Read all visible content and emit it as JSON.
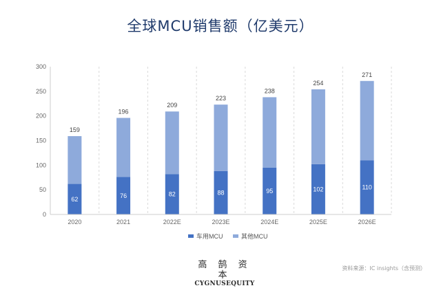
{
  "title": "全球MCU销售额（亿美元）",
  "chart_data": {
    "type": "bar",
    "stacked": true,
    "categories": [
      "2020",
      "2021",
      "2022E",
      "2023E",
      "2024E",
      "2025E",
      "2026E"
    ],
    "series": [
      {
        "name": "车用MCU",
        "values": [
          62,
          76,
          82,
          88,
          95,
          102,
          110
        ],
        "color": "#4472c4"
      },
      {
        "name": "其他MCU",
        "values": [
          97,
          120,
          127,
          135,
          143,
          152,
          161
        ],
        "color": "#8eaadb"
      }
    ],
    "totals": [
      159,
      196,
      209,
      223,
      238,
      254,
      271
    ],
    "ylim": [
      0,
      300
    ],
    "yticks": [
      0,
      50,
      100,
      150,
      200,
      250,
      300
    ],
    "grid": "vertical-dashed",
    "legend": "bottom"
  },
  "logo": {
    "chinese": "高 鹄 资 本",
    "english": "CYGNUSEQUITY"
  },
  "source": "资料来源：IC insights（含预测）",
  "colors": {
    "title": "#1f3a6b",
    "axis": "#cccccc",
    "grid": "#d9d9d9"
  }
}
